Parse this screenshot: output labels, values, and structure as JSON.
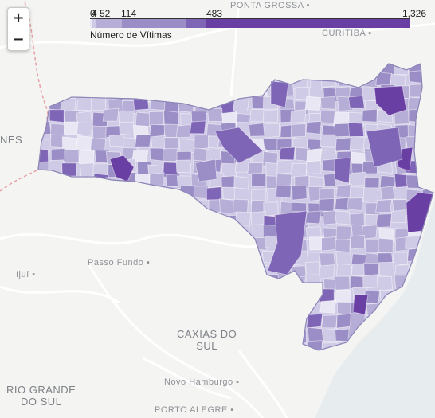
{
  "map": {
    "places": [
      {
        "name": "PONTA GROSSA",
        "dot": true,
        "class": ""
      },
      {
        "name": "CURITIBA",
        "dot": true,
        "class": ""
      },
      {
        "name": "NES",
        "dot": false,
        "class": "big"
      },
      {
        "name": "Passo Fundo",
        "dot": true,
        "class": ""
      },
      {
        "name": "Ijuí",
        "dot": true,
        "class": ""
      },
      {
        "name": "CAXIAS DO SUL",
        "dot": true,
        "class": "big"
      },
      {
        "name": "Novo Hamburgo",
        "dot": true,
        "class": ""
      },
      {
        "name": "RIO GRANDE DO SUL",
        "dot": false,
        "class": "big"
      },
      {
        "name": "PORTO ALEGRE",
        "dot": true,
        "class": ""
      }
    ]
  },
  "zoom": {
    "in_label": "+",
    "out_label": "−"
  },
  "legend": {
    "title": "Número de Vítimas",
    "ticks": [
      "0",
      "4",
      "52",
      "114",
      "483",
      "1,326"
    ],
    "tick_values": [
      0,
      4,
      52,
      114,
      483,
      1326
    ],
    "max": 1326,
    "colors": [
      "#e9e7f3",
      "#cfcae6",
      "#b6aed6",
      "#9b8ec6",
      "#7f65b6",
      "#6a3fa4"
    ]
  },
  "colors": {
    "region_outline": "#8d87b9",
    "border_dashed": "#e8a0a8",
    "road": "#ffffff",
    "water": "#e7ecef"
  }
}
